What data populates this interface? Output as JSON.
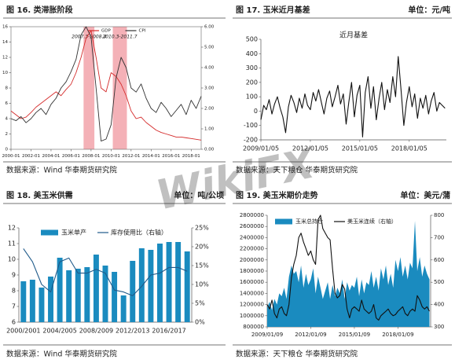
{
  "watermark": "WikiFX",
  "chart_data": [
    {
      "type": "line",
      "title": "图 16. 类滞胀阶段",
      "source": "数据来源：Wind 华泰期货研究院",
      "x": [
        2000,
        2000.5,
        2001,
        2001.5,
        2002,
        2002.5,
        2003,
        2003.5,
        2004,
        2004.5,
        2005,
        2005.5,
        2006,
        2006.5,
        2007,
        2007.5,
        2008,
        2008.5,
        2009,
        2009.5,
        2010,
        2010.5,
        2011,
        2011.5,
        2012,
        2012.5,
        2013,
        2013.5,
        2014,
        2014.5,
        2015,
        2015.5,
        2016,
        2016.5,
        2017,
        2017.5,
        2018,
        2018.5,
        2019
      ],
      "xlim": [
        2000,
        2019
      ],
      "xticks": [
        {
          "value": 2000,
          "label": "2000-01"
        },
        {
          "value": 2002,
          "label": "2002-01"
        },
        {
          "value": 2004,
          "label": "2004-01"
        },
        {
          "value": 2006,
          "label": "2006-01"
        },
        {
          "value": 2008,
          "label": "2008-01"
        },
        {
          "value": 2010,
          "label": "2010-01"
        },
        {
          "value": 2012,
          "label": "2012-01"
        },
        {
          "value": 2014,
          "label": "2014-01"
        },
        {
          "value": 2016,
          "label": "2016-01"
        },
        {
          "value": 2018,
          "label": "2018-01"
        }
      ],
      "ylim": [
        0,
        16
      ],
      "yticks": [
        0,
        2,
        4,
        6,
        8,
        10,
        12,
        14,
        16
      ],
      "y2lim": [
        0,
        6
      ],
      "y2ticks": [
        {
          "value": 0,
          "label": "0.00"
        },
        {
          "value": 1,
          "label": "1.00"
        },
        {
          "value": 2,
          "label": "2.00"
        },
        {
          "value": 3,
          "label": "3.00"
        },
        {
          "value": 4,
          "label": "4.00"
        },
        {
          "value": 5,
          "label": "5.00"
        },
        {
          "value": 6,
          "label": "6.00"
        }
      ],
      "shaded": [
        {
          "label": "2007.3-2008.4",
          "from": 2007.25,
          "to": 2008.33,
          "color": "#f2a3aa"
        },
        {
          "label": "2010.3-2011.7",
          "from": 2010.17,
          "to": 2011.58,
          "color": "#f2a3aa"
        }
      ],
      "series": [
        {
          "name": "GDP",
          "color": "#d42a2a",
          "values": [
            5,
            4.5,
            4,
            4.2,
            4.8,
            5.5,
            6,
            6.5,
            7,
            7.5,
            7,
            7.8,
            8.5,
            10,
            12,
            14.5,
            15.5,
            12,
            8,
            7.5,
            10,
            9.5,
            8.5,
            7,
            5,
            4,
            4.2,
            3.5,
            3,
            2.5,
            2.2,
            2,
            1.8,
            1.6,
            1.6,
            1.5,
            1.4,
            1.3,
            1.2
          ]
        },
        {
          "name": "CPI",
          "color": "#333333",
          "axis": "y2",
          "values": [
            1.5,
            1.4,
            1.6,
            1.3,
            1.5,
            1.8,
            2.0,
            1.7,
            2.2,
            2.5,
            3.0,
            3.3,
            3.8,
            4.4,
            5.6,
            6.0,
            5.5,
            3.0,
            0.4,
            0.5,
            1.2,
            3.5,
            4.5,
            4.0,
            3.0,
            2.8,
            3.2,
            2.5,
            2.0,
            1.8,
            2.3,
            2.0,
            1.6,
            1.9,
            2.2,
            1.7,
            2.4,
            2.0,
            2.6
          ]
        }
      ]
    },
    {
      "type": "line",
      "title": "图 17. 玉米近月基差",
      "unit": "单位：元/吨",
      "source": "数据来源：天下粮仓 华泰期货研究院",
      "x": [
        2009,
        2009.17,
        2009.33,
        2009.5,
        2009.67,
        2009.83,
        2010,
        2010.17,
        2010.33,
        2010.5,
        2010.67,
        2010.83,
        2011,
        2011.17,
        2011.33,
        2011.5,
        2011.67,
        2011.83,
        2012,
        2012.17,
        2012.33,
        2012.5,
        2012.67,
        2012.83,
        2013,
        2013.17,
        2013.33,
        2013.5,
        2013.67,
        2013.83,
        2014,
        2014.17,
        2014.33,
        2014.5,
        2014.67,
        2014.83,
        2015,
        2015.17,
        2015.33,
        2015.5,
        2015.67,
        2015.83,
        2016,
        2016.17,
        2016.33,
        2016.5,
        2016.67,
        2016.83,
        2017,
        2017.17,
        2017.33,
        2017.5,
        2017.67,
        2017.83,
        2018,
        2018.17,
        2018.33,
        2018.5,
        2018.67,
        2018.83,
        2019,
        2019.17,
        2019.33,
        2019.5,
        2019.67,
        2019.83,
        2020,
        2020.17
      ],
      "xlim": [
        2009,
        2020.25
      ],
      "xticks": [
        {
          "value": 2009,
          "label": "2009/01/05"
        },
        {
          "value": 2012,
          "label": "2012/01/05"
        },
        {
          "value": 2015,
          "label": "2015/01/05"
        },
        {
          "value": 2018,
          "label": "2018/01/05"
        }
      ],
      "ylim": [
        -200,
        500
      ],
      "yticks": [
        -200,
        -100,
        0,
        100,
        200,
        300,
        400,
        500
      ],
      "series": [
        {
          "name": "近月基差",
          "color": "#111111",
          "values": [
            -60,
            40,
            10,
            80,
            -20,
            50,
            100,
            20,
            -40,
            -150,
            30,
            110,
            60,
            -10,
            90,
            20,
            120,
            40,
            10,
            130,
            70,
            150,
            60,
            -20,
            90,
            140,
            30,
            100,
            180,
            50,
            120,
            -90,
            60,
            200,
            -40,
            110,
            180,
            -180,
            130,
            240,
            20,
            170,
            -60,
            90,
            200,
            10,
            150,
            60,
            240,
            100,
            380,
            150,
            -100,
            60,
            170,
            30,
            120,
            -50,
            90,
            20,
            110,
            -20,
            70,
            130,
            0,
            60,
            40,
            20
          ]
        }
      ]
    },
    {
      "type": "bar",
      "title": "图 18. 美玉米供需",
      "unit": "单位：吨/公顷",
      "source": "数据来源：Wind 华泰期货研究院",
      "categories": [
        "2000/2001",
        null,
        null,
        null,
        "2004/2005",
        null,
        null,
        null,
        "2008/2009",
        null,
        null,
        null,
        "2012/2013",
        null,
        null,
        null,
        "2016/2017",
        null,
        null
      ],
      "ylim": [
        6,
        12
      ],
      "yticks": [
        6,
        7,
        8,
        9,
        10,
        11,
        12
      ],
      "y2lim": [
        0,
        25
      ],
      "y2ticks": [
        {
          "value": 0,
          "label": "0%"
        },
        {
          "value": 5,
          "label": "5%"
        },
        {
          "value": 10,
          "label": "10%"
        },
        {
          "value": 15,
          "label": "15%"
        },
        {
          "value": 20,
          "label": "20%"
        },
        {
          "value": 25,
          "label": "25%"
        }
      ],
      "series": [
        {
          "name": "玉米单产",
          "color": "#1a8bbf",
          "values": [
            8.6,
            8.7,
            8.2,
            8.9,
            10.1,
            9.3,
            9.4,
            9.5,
            10.3,
            9.6,
            9.2,
            7.7,
            9.9,
            10.7,
            10.6,
            11.0,
            11.1,
            11.1,
            10.5
          ]
        },
        {
          "name": "库存使用比（右轴）",
          "type": "line",
          "axis": "y2",
          "color": "#1f5a8a",
          "values": [
            19.5,
            16,
            10,
            8,
            16,
            17,
            13,
            13,
            14,
            13,
            8.5,
            8,
            7,
            9.5,
            12.5,
            13,
            14.5,
            14.5,
            13.5
          ]
        }
      ]
    },
    {
      "type": "area",
      "title": "图 19. 美玉米期价走势",
      "unit": "单位：美元/蒲",
      "source": "数据来源：天下粮仓 华泰期货研究院",
      "x": [
        2009,
        2009.17,
        2009.33,
        2009.5,
        2009.67,
        2009.83,
        2010,
        2010.17,
        2010.33,
        2010.5,
        2010.67,
        2010.83,
        2011,
        2011.17,
        2011.33,
        2011.5,
        2011.67,
        2011.83,
        2012,
        2012.17,
        2012.33,
        2012.5,
        2012.67,
        2012.83,
        2013,
        2013.17,
        2013.33,
        2013.5,
        2013.67,
        2013.83,
        2014,
        2014.17,
        2014.33,
        2014.5,
        2014.67,
        2014.83,
        2015,
        2015.17,
        2015.33,
        2015.5,
        2015.67,
        2015.83,
        2016,
        2016.17,
        2016.33,
        2016.5,
        2016.67,
        2016.83,
        2017,
        2017.17,
        2017.33,
        2017.5,
        2017.67,
        2017.83,
        2018,
        2018.17,
        2018.33,
        2018.5,
        2018.67,
        2018.83,
        2019,
        2019.17,
        2019.33,
        2019.5,
        2019.67,
        2019.83,
        2020,
        2020.17
      ],
      "xlim": [
        2009,
        2020.25
      ],
      "xticks": [
        {
          "value": 2009,
          "label": "2009/01/09"
        },
        {
          "value": 2012,
          "label": "2012/01/09"
        },
        {
          "value": 2015,
          "label": "2015/01/09"
        },
        {
          "value": 2018,
          "label": "2018/01/09"
        }
      ],
      "ylim": [
        800000,
        2800000
      ],
      "yticks": [
        800000,
        1000000,
        1200000,
        1400000,
        1600000,
        1800000,
        2000000,
        2200000,
        2400000,
        2600000,
        2800000
      ],
      "y2lim": [
        300,
        800
      ],
      "y2ticks": [
        300,
        400,
        500,
        600,
        700,
        800
      ],
      "series": [
        {
          "name": "玉米总持仓",
          "color": "#1a8bbf",
          "values": [
            1150000,
            1250000,
            1100000,
            1300000,
            1200000,
            1400000,
            1350000,
            1500000,
            1300000,
            1700000,
            1900000,
            1750000,
            1800000,
            1600000,
            1900000,
            1500000,
            1750000,
            1550000,
            1650000,
            1850000,
            1400000,
            1700000,
            1500000,
            1300000,
            1450000,
            1600000,
            1300000,
            1550000,
            1350000,
            1500000,
            1400000,
            1650000,
            1300000,
            1600000,
            1450000,
            1550000,
            1500000,
            1700000,
            1350000,
            1650000,
            1400000,
            1600000,
            1550000,
            1800000,
            1500000,
            1700000,
            1450000,
            1850000,
            1650000,
            1900000,
            1550000,
            1750000,
            1500000,
            2000000,
            1800000,
            2050000,
            1700000,
            1900000,
            1650000,
            1950000,
            1850000,
            2700000,
            1800000,
            2050000,
            1700000,
            1900000,
            1750000,
            1650000
          ]
        },
        {
          "name": "美玉米连续（右轴）",
          "type": "line",
          "axis": "y2",
          "color": "#111111",
          "values": [
            400,
            380,
            420,
            360,
            340,
            380,
            390,
            360,
            350,
            400,
            520,
            580,
            620,
            700,
            720,
            680,
            650,
            620,
            640,
            600,
            580,
            780,
            800,
            740,
            720,
            700,
            690,
            560,
            450,
            430,
            440,
            490,
            470,
            380,
            340,
            380,
            390,
            380,
            370,
            420,
            380,
            370,
            360,
            370,
            400,
            340,
            330,
            350,
            360,
            370,
            380,
            360,
            350,
            355,
            370,
            380,
            390,
            360,
            350,
            370,
            380,
            370,
            440,
            420,
            390,
            380,
            390,
            370
          ]
        }
      ]
    }
  ]
}
